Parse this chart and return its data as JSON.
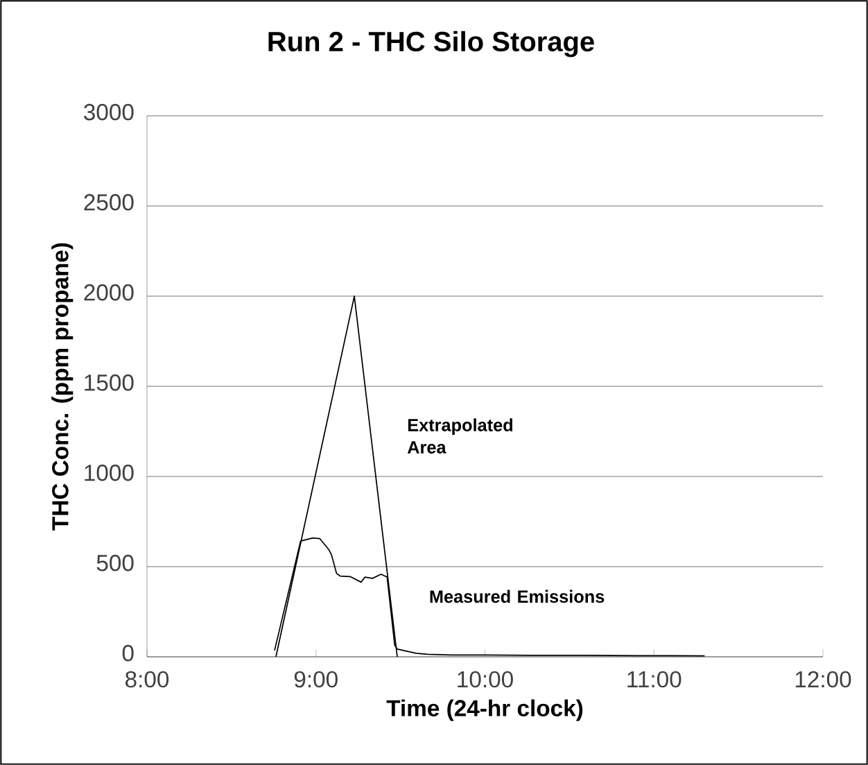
{
  "chart_data": {
    "type": "line",
    "title": "Run 2 - THC Silo Storage",
    "xlabel": "Time (24-hr clock)",
    "ylabel": "THC Conc. (ppm propane)",
    "xlim": [
      8,
      12
    ],
    "xticks": [
      {
        "value": 8,
        "label": "8:00"
      },
      {
        "value": 9,
        "label": "9:00"
      },
      {
        "value": 10,
        "label": "10:00"
      },
      {
        "value": 11,
        "label": "11:00"
      },
      {
        "value": 12,
        "label": "12:00"
      }
    ],
    "ylim": [
      0,
      3000
    ],
    "yticks": [
      0,
      500,
      1000,
      1500,
      2000,
      2500,
      3000
    ],
    "grid": "y",
    "legend": false,
    "marker": "none",
    "line_style": "solid",
    "series": [
      {
        "name": "Extrapolated Area",
        "color": "#000000",
        "x": [
          8.763,
          9.227,
          9.481
        ],
        "values": [
          0,
          2000,
          0
        ]
      },
      {
        "name": "Measured Emissions",
        "color": "#000000",
        "x": [
          8.755,
          8.909,
          8.982,
          9.023,
          9.077,
          9.092,
          9.122,
          9.143,
          9.202,
          9.267,
          9.29,
          9.334,
          9.385,
          9.421,
          9.466,
          9.481,
          9.592,
          9.66,
          9.8,
          10.0,
          10.3,
          10.6,
          10.9,
          11.1,
          11.3
        ],
        "values": [
          35,
          642,
          659,
          655,
          593,
          565,
          462,
          448,
          445,
          414,
          442,
          435,
          458,
          442,
          64,
          43,
          20,
          14,
          10,
          10,
          8,
          8,
          6,
          6,
          5
        ]
      }
    ]
  }
}
